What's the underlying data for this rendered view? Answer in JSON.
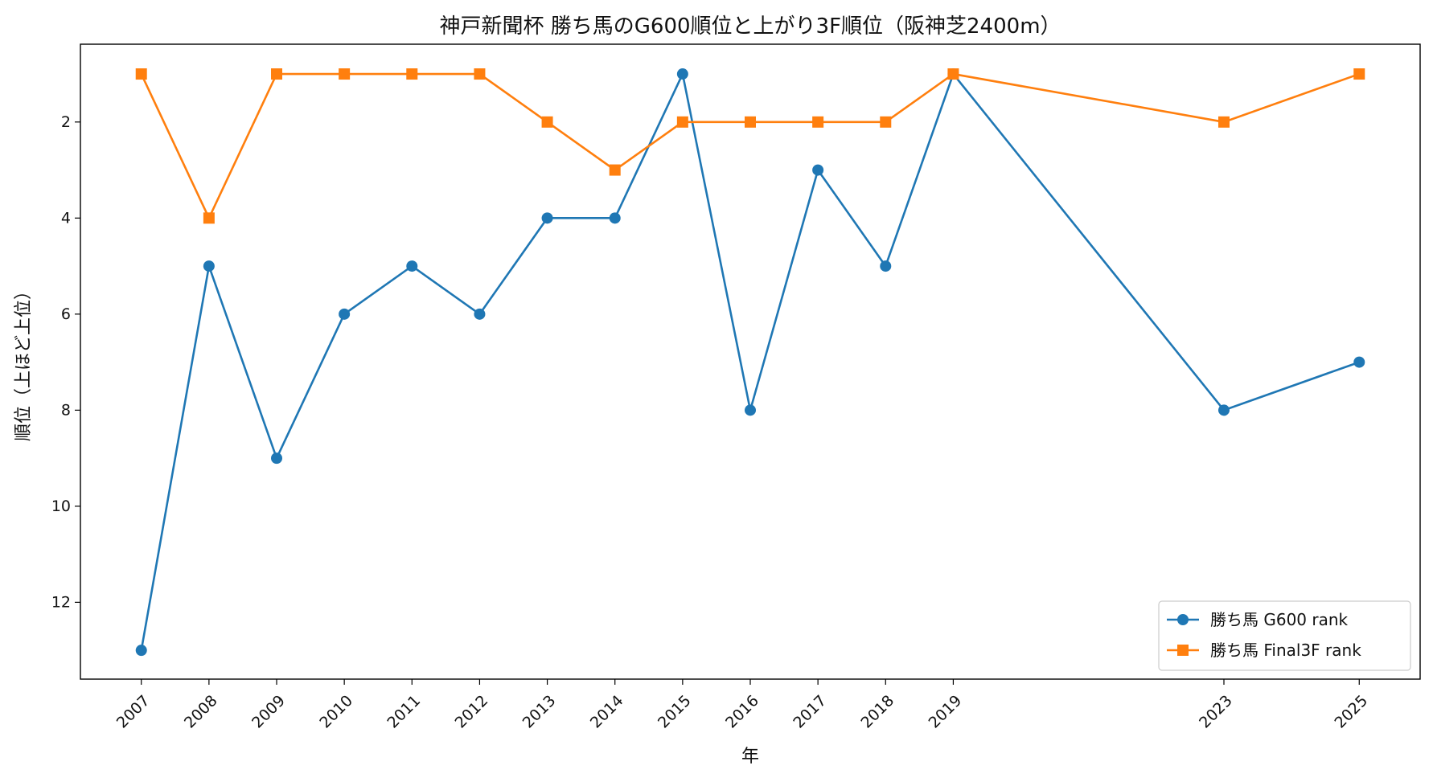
{
  "chart_data": {
    "type": "line",
    "title": "神戸新聞杯 勝ち馬のG600順位と上がり3F順位（阪神芝2400m）",
    "xlabel": "年",
    "ylabel": "順位（上ほど上位）",
    "x": [
      2007,
      2008,
      2009,
      2010,
      2011,
      2012,
      2013,
      2014,
      2015,
      2016,
      2017,
      2018,
      2019,
      2023,
      2025
    ],
    "xlim": [
      2006.1,
      2025.9
    ],
    "ylim": [
      13.6,
      0.38
    ],
    "y_inverted": true,
    "yticks": [
      2,
      4,
      6,
      8,
      10,
      12
    ],
    "grid": false,
    "legend_position": "lower-right",
    "series": [
      {
        "name": "勝ち馬 G600 rank",
        "color": "#1f77b4",
        "marker": "circle",
        "values": [
          13,
          5,
          9,
          6,
          5,
          6,
          4,
          4,
          1,
          8,
          3,
          5,
          1,
          8,
          7
        ]
      },
      {
        "name": "勝ち馬 Final3F rank",
        "color": "#ff7f0e",
        "marker": "square",
        "values": [
          1,
          4,
          1,
          1,
          1,
          1,
          2,
          3,
          2,
          2,
          2,
          2,
          1,
          2,
          1
        ]
      }
    ]
  }
}
